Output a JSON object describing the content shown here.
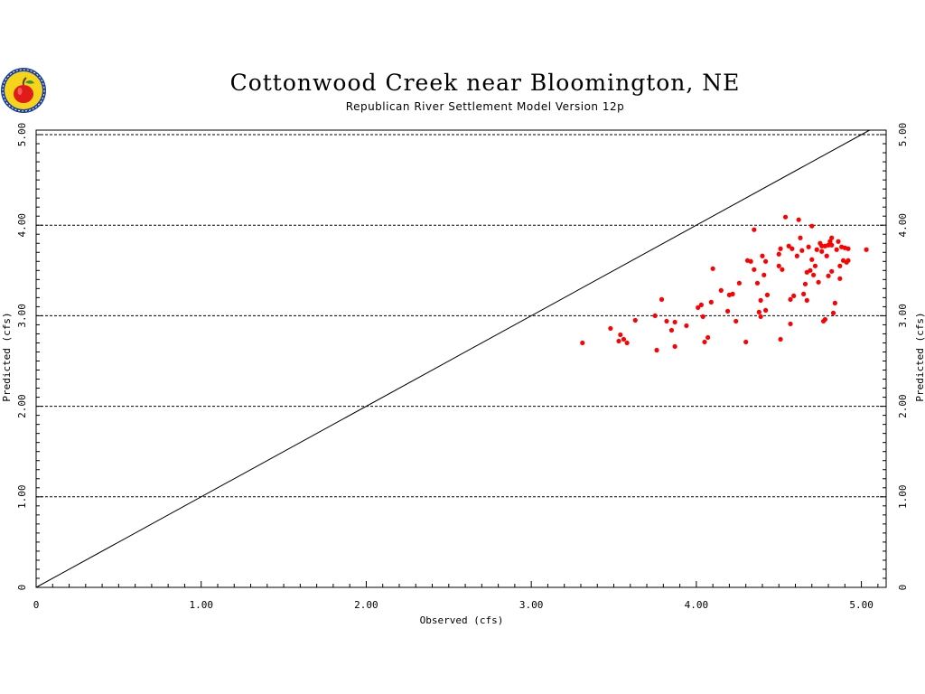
{
  "chart_data": {
    "type": "scatter",
    "title": "Cottonwood Creek near Bloomington, NE",
    "subtitle": "Republican River Settlement Model Version 12p",
    "xlabel": "Observed (cfs)",
    "ylabel": "Predicted (cfs)",
    "xlim": [
      0,
      5.15
    ],
    "ylim": [
      0,
      5.05
    ],
    "xticks": [
      {
        "value": 0,
        "label": "0"
      },
      {
        "value": 1,
        "label": "1.00"
      },
      {
        "value": 2,
        "label": "2.00"
      },
      {
        "value": 3,
        "label": "3.00"
      },
      {
        "value": 4,
        "label": "4.00"
      },
      {
        "value": 5,
        "label": "5.00"
      }
    ],
    "yticks": [
      {
        "value": 0,
        "label": "0"
      },
      {
        "value": 1,
        "label": "1.00"
      },
      {
        "value": 2,
        "label": "2.00"
      },
      {
        "value": 3,
        "label": "3.00"
      },
      {
        "value": 4,
        "label": "4.00"
      },
      {
        "value": 5,
        "label": "5.00"
      }
    ],
    "grid_y": true,
    "reference_line": {
      "x": [
        0,
        5.05
      ],
      "y": [
        0,
        5.05
      ]
    },
    "marker_color": "#ff0000",
    "points": [
      [
        3.31,
        2.7
      ],
      [
        3.48,
        2.86
      ],
      [
        3.53,
        2.72
      ],
      [
        3.54,
        2.79
      ],
      [
        3.56,
        2.74
      ],
      [
        3.58,
        2.7
      ],
      [
        3.63,
        2.95
      ],
      [
        3.75,
        3.0
      ],
      [
        3.76,
        2.62
      ],
      [
        3.79,
        3.18
      ],
      [
        3.82,
        2.94
      ],
      [
        3.85,
        2.84
      ],
      [
        3.87,
        2.66
      ],
      [
        3.87,
        2.93
      ],
      [
        3.94,
        2.89
      ],
      [
        4.01,
        3.09
      ],
      [
        4.03,
        3.12
      ],
      [
        4.04,
        2.99
      ],
      [
        4.05,
        2.71
      ],
      [
        4.07,
        2.76
      ],
      [
        4.09,
        3.15
      ],
      [
        4.1,
        3.52
      ],
      [
        4.15,
        3.28
      ],
      [
        4.19,
        3.05
      ],
      [
        4.2,
        3.23
      ],
      [
        4.22,
        3.24
      ],
      [
        4.24,
        2.94
      ],
      [
        4.26,
        3.36
      ],
      [
        4.3,
        2.71
      ],
      [
        4.31,
        3.61
      ],
      [
        4.33,
        3.6
      ],
      [
        4.35,
        3.95
      ],
      [
        4.35,
        3.51
      ],
      [
        4.37,
        3.36
      ],
      [
        4.38,
        3.04
      ],
      [
        4.39,
        2.99
      ],
      [
        4.39,
        3.17
      ],
      [
        4.4,
        3.66
      ],
      [
        4.41,
        3.45
      ],
      [
        4.42,
        3.6
      ],
      [
        4.42,
        3.06
      ],
      [
        4.43,
        3.23
      ],
      [
        4.5,
        3.55
      ],
      [
        4.5,
        3.68
      ],
      [
        4.51,
        2.74
      ],
      [
        4.51,
        3.74
      ],
      [
        4.52,
        3.51
      ],
      [
        4.54,
        4.09
      ],
      [
        4.56,
        3.77
      ],
      [
        4.57,
        3.18
      ],
      [
        4.57,
        2.91
      ],
      [
        4.58,
        3.74
      ],
      [
        4.59,
        3.22
      ],
      [
        4.61,
        3.66
      ],
      [
        4.62,
        4.06
      ],
      [
        4.63,
        3.86
      ],
      [
        4.64,
        3.72
      ],
      [
        4.65,
        3.24
      ],
      [
        4.66,
        3.35
      ],
      [
        4.67,
        3.48
      ],
      [
        4.67,
        3.17
      ],
      [
        4.68,
        3.76
      ],
      [
        4.69,
        3.5
      ],
      [
        4.7,
        3.62
      ],
      [
        4.7,
        3.99
      ],
      [
        4.71,
        3.45
      ],
      [
        4.72,
        3.55
      ],
      [
        4.73,
        3.73
      ],
      [
        4.74,
        3.37
      ],
      [
        4.75,
        3.8
      ],
      [
        4.76,
        3.77
      ],
      [
        4.76,
        3.71
      ],
      [
        4.77,
        2.94
      ],
      [
        4.78,
        2.96
      ],
      [
        4.78,
        3.77
      ],
      [
        4.79,
        3.66
      ],
      [
        4.8,
        3.44
      ],
      [
        4.8,
        3.78
      ],
      [
        4.81,
        3.82
      ],
      [
        4.82,
        3.86
      ],
      [
        4.82,
        3.78
      ],
      [
        4.82,
        3.49
      ],
      [
        4.83,
        3.03
      ],
      [
        4.84,
        3.14
      ],
      [
        4.85,
        3.73
      ],
      [
        4.86,
        3.82
      ],
      [
        4.87,
        3.41
      ],
      [
        4.87,
        3.55
      ],
      [
        4.88,
        3.76
      ],
      [
        4.89,
        3.61
      ],
      [
        4.9,
        3.75
      ],
      [
        4.91,
        3.59
      ],
      [
        4.92,
        3.61
      ],
      [
        4.92,
        3.74
      ],
      [
        5.03,
        3.73
      ]
    ]
  }
}
